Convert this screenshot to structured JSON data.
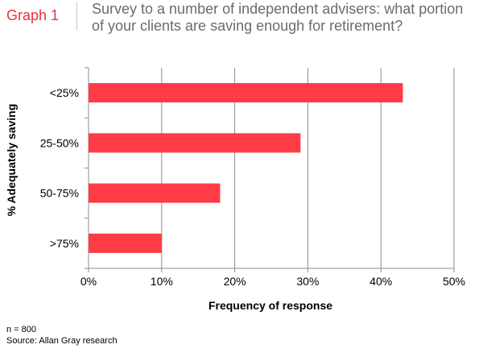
{
  "header": {
    "label": "Graph 1",
    "title_line1": "Survey to a number of independent advisers: what portion",
    "title_line2": "of your clients are saving enough for retirement?"
  },
  "notes": {
    "sample": "n = 800",
    "source": "Source: Allan Gray research"
  },
  "colors": {
    "accent": "#e8323c",
    "bar": "#ff3b45",
    "title": "#6b6b6b",
    "grid": "#8c8c8c"
  },
  "chart_data": {
    "type": "bar",
    "orientation": "horizontal",
    "categories": [
      "<25%",
      "25-50%",
      "50-75%",
      ">75%"
    ],
    "values": [
      43,
      29,
      18,
      10
    ],
    "value_unit": "%",
    "xlabel": "Frequency of response",
    "ylabel": "% Adequately saving",
    "xlim": [
      0,
      50
    ],
    "xticks": [
      "0%",
      "10%",
      "20%",
      "30%",
      "40%",
      "50%"
    ],
    "grid": "vertical",
    "legend": "none"
  }
}
